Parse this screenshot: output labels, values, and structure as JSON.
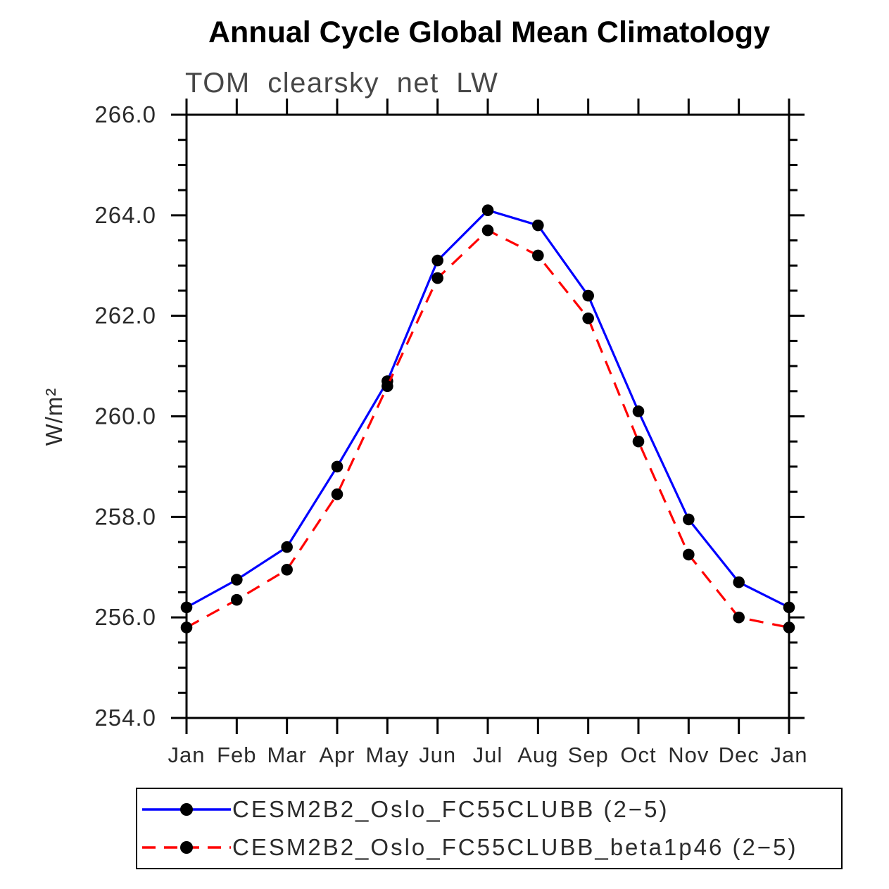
{
  "title": "Annual Cycle Global Mean Climatology",
  "subtitle": "TOM clearsky net LW",
  "chart_data": {
    "type": "line",
    "title": "Annual Cycle Global Mean Climatology",
    "subtitle": "TOM clearsky net LW",
    "ylabel": "W/m²",
    "xlabel": "",
    "categories": [
      "Jan",
      "Feb",
      "Mar",
      "Apr",
      "May",
      "Jun",
      "Jul",
      "Aug",
      "Sep",
      "Oct",
      "Nov",
      "Dec",
      "Jan"
    ],
    "ylim": [
      254.0,
      266.0
    ],
    "y_major_ticks": [
      254.0,
      256.0,
      258.0,
      260.0,
      262.0,
      264.0,
      266.0
    ],
    "y_minor_step": 0.5,
    "grid": false,
    "legend_position": "bottom",
    "axis_color": "#000000",
    "marker_color": "#000000",
    "series": [
      {
        "name": "CESM2B2_Oslo_FC55CLUBB (2−5)",
        "color": "#0000ff",
        "style": "solid",
        "marker": "filled-circle",
        "marker_color": "#000000",
        "values": [
          256.2,
          256.75,
          257.4,
          259.0,
          260.7,
          263.1,
          264.1,
          263.8,
          262.4,
          260.1,
          257.95,
          256.7,
          256.2
        ]
      },
      {
        "name": "CESM2B2_Oslo_FC55CLUBB_beta1p46 (2−5)",
        "color": "#ff0000",
        "style": "dashed",
        "marker": "filled-circle",
        "marker_color": "#000000",
        "values": [
          255.8,
          256.35,
          256.95,
          258.45,
          260.6,
          262.75,
          263.7,
          263.2,
          261.95,
          259.5,
          257.25,
          256.0,
          255.8
        ]
      }
    ]
  }
}
